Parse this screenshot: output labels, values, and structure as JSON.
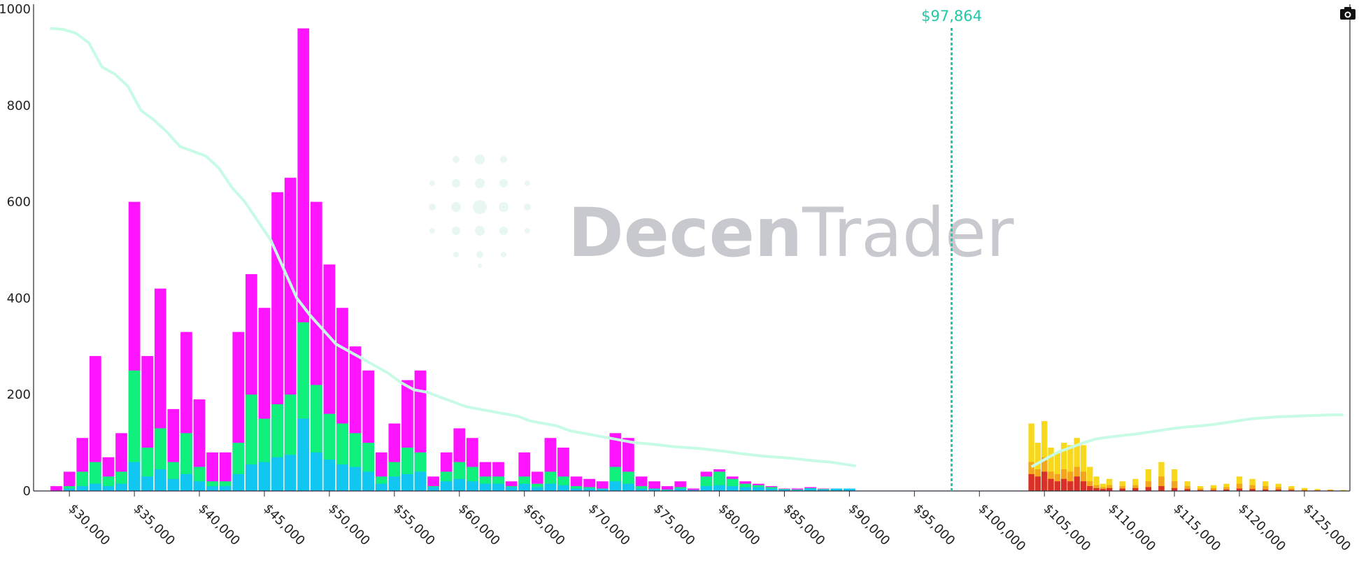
{
  "chart_data": {
    "type": "bar",
    "xlim": [
      28000,
      128500
    ],
    "ylim": [
      0,
      1000
    ],
    "yticks": [
      0,
      200,
      400,
      600,
      800,
      1000
    ],
    "xticks": [
      30000,
      35000,
      40000,
      45000,
      50000,
      55000,
      60000,
      65000,
      70000,
      75000,
      80000,
      85000,
      90000,
      95000,
      100000,
      105000,
      110000,
      115000,
      120000,
      125000
    ],
    "xtick_labels": [
      "$30,000",
      "$35,000",
      "$40,000",
      "$45,000",
      "$50,000",
      "$55,000",
      "$60,000",
      "$65,000",
      "$70,000",
      "$75,000",
      "$80,000",
      "$85,000",
      "$90,000",
      "$95,000",
      "$100,000",
      "$105,000",
      "$110,000",
      "$115,000",
      "$120,000",
      "$125,000"
    ],
    "current_price": {
      "value": 97864,
      "label": "$97,864",
      "color": "#1fc9a6"
    },
    "long_side": {
      "colors": {
        "total": "#ff14ff",
        "mid": "#10f07c",
        "base": "#12c6f2"
      },
      "x": [
        29000,
        30000,
        31000,
        32000,
        33000,
        34000,
        35000,
        36000,
        37000,
        38000,
        39000,
        40000,
        41000,
        42000,
        43000,
        44000,
        45000,
        46000,
        47000,
        48000,
        49000,
        50000,
        51000,
        52000,
        53000,
        54000,
        55000,
        56000,
        57000,
        58000,
        59000,
        60000,
        61000,
        62000,
        63000,
        64000,
        65000,
        66000,
        67000,
        68000,
        69000,
        70000,
        71000,
        72000,
        73000,
        74000,
        75000,
        76000,
        77000,
        78000,
        79000,
        80000,
        81000,
        82000,
        83000,
        84000,
        85000,
        86000,
        87000,
        88000,
        89000,
        90000
      ],
      "total": [
        10,
        40,
        110,
        280,
        70,
        120,
        600,
        280,
        420,
        170,
        330,
        190,
        80,
        80,
        330,
        450,
        380,
        620,
        650,
        960,
        600,
        470,
        380,
        300,
        250,
        80,
        140,
        230,
        250,
        30,
        80,
        130,
        110,
        60,
        60,
        20,
        80,
        40,
        110,
        90,
        30,
        25,
        20,
        120,
        110,
        30,
        20,
        10,
        20,
        5,
        40,
        45,
        30,
        20,
        15,
        10,
        5,
        5,
        8,
        5,
        5,
        4
      ],
      "mid": [
        0,
        10,
        40,
        60,
        30,
        40,
        250,
        90,
        130,
        60,
        120,
        50,
        20,
        20,
        100,
        200,
        150,
        180,
        200,
        350,
        220,
        160,
        140,
        120,
        100,
        30,
        60,
        90,
        80,
        10,
        40,
        60,
        50,
        30,
        30,
        10,
        30,
        15,
        40,
        30,
        10,
        8,
        5,
        50,
        40,
        10,
        5,
        3,
        8,
        2,
        30,
        40,
        25,
        15,
        12,
        8,
        4,
        3,
        6,
        4,
        4,
        3
      ],
      "base": [
        0,
        5,
        10,
        15,
        10,
        15,
        60,
        30,
        45,
        25,
        35,
        20,
        10,
        10,
        35,
        55,
        60,
        70,
        75,
        150,
        80,
        65,
        55,
        50,
        40,
        15,
        30,
        35,
        40,
        8,
        20,
        25,
        20,
        15,
        15,
        8,
        15,
        8,
        15,
        12,
        5,
        5,
        4,
        20,
        15,
        5,
        4,
        2,
        5,
        2,
        10,
        12,
        10,
        8,
        8,
        5,
        3,
        2,
        5,
        3,
        5,
        5
      ]
    },
    "short_side": {
      "colors": {
        "total": "#f7d81c",
        "mid": "#f2a51d",
        "base": "#d9302a"
      },
      "x": [
        104000,
        104500,
        105000,
        105500,
        106000,
        106500,
        107000,
        107500,
        108000,
        108500,
        109000,
        109500,
        110000,
        111000,
        112000,
        113000,
        114000,
        115000,
        116000,
        117000,
        118000,
        119000,
        120000,
        121000,
        122000,
        123000,
        124000,
        125000,
        126000,
        127000,
        128000
      ],
      "total": [
        140,
        100,
        145,
        90,
        80,
        100,
        95,
        110,
        95,
        50,
        30,
        15,
        25,
        20,
        25,
        45,
        60,
        45,
        20,
        10,
        12,
        15,
        30,
        25,
        20,
        15,
        10,
        6,
        4,
        3,
        2
      ],
      "mid": [
        60,
        45,
        70,
        40,
        35,
        45,
        40,
        50,
        40,
        20,
        12,
        8,
        12,
        10,
        12,
        20,
        30,
        20,
        10,
        5,
        6,
        8,
        15,
        12,
        10,
        8,
        5,
        3,
        2,
        2,
        1
      ],
      "base": [
        35,
        30,
        40,
        25,
        20,
        25,
        20,
        30,
        20,
        10,
        6,
        4,
        6,
        5,
        6,
        8,
        10,
        6,
        4,
        2,
        2,
        3,
        5,
        4,
        3,
        3,
        2,
        1,
        1,
        1,
        0
      ]
    },
    "cumulative_long": {
      "color": "#c8fbe6",
      "x": [
        28500,
        29500,
        30500,
        31500,
        32500,
        33500,
        34500,
        35500,
        36500,
        37500,
        38500,
        39500,
        40500,
        41500,
        42500,
        43500,
        44500,
        45500,
        46500,
        47500,
        48500,
        49500,
        50500,
        51500,
        52500,
        53500,
        54500,
        55500,
        56500,
        57500,
        58500,
        59500,
        60500,
        61500,
        62500,
        63500,
        64500,
        65500,
        66500,
        67500,
        68500,
        69500,
        70500,
        71500,
        72500,
        73500,
        74500,
        75500,
        76500,
        77500,
        78500,
        79500,
        80500,
        81500,
        82500,
        83500,
        84500,
        85500,
        86500,
        87500,
        88500,
        89500,
        90500
      ],
      "y": [
        960,
        958,
        950,
        930,
        880,
        865,
        840,
        790,
        770,
        745,
        715,
        705,
        695,
        670,
        630,
        600,
        560,
        520,
        460,
        400,
        365,
        335,
        305,
        290,
        275,
        260,
        245,
        225,
        210,
        205,
        195,
        185,
        175,
        170,
        165,
        160,
        155,
        145,
        140,
        135,
        125,
        120,
        115,
        110,
        105,
        100,
        98,
        95,
        92,
        90,
        88,
        85,
        82,
        78,
        75,
        72,
        70,
        68,
        65,
        62,
        60,
        56,
        52
      ]
    },
    "cumulative_short": {
      "color": "#c8fbe6",
      "x": [
        104000,
        105000,
        106000,
        107000,
        108000,
        109000,
        110000,
        111000,
        112000,
        113000,
        114000,
        115000,
        116000,
        117000,
        118000,
        119000,
        120000,
        121000,
        122000,
        123000,
        124000,
        125000,
        126000,
        127000,
        128000
      ],
      "y": [
        50,
        65,
        80,
        90,
        100,
        108,
        112,
        115,
        118,
        122,
        126,
        130,
        133,
        135,
        138,
        142,
        146,
        150,
        152,
        154,
        155,
        156,
        157,
        158,
        158
      ]
    }
  },
  "watermark": {
    "text_bold": "Decen",
    "text_light": "Trader"
  },
  "toolbar": {
    "camera_icon": "camera-icon"
  }
}
